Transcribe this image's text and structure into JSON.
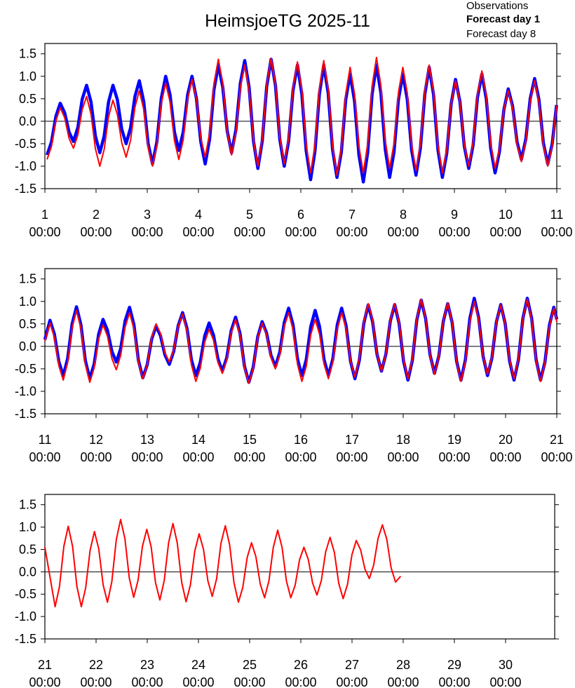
{
  "title": "HeimsjoeTG 2025-11",
  "legend": [
    {
      "name": "Observations",
      "color": "#000000"
    },
    {
      "name": "Forecast day 1",
      "color": "#0000ff"
    },
    {
      "name": "Forecast day 8",
      "color": "#ff0000"
    }
  ],
  "chart_data": [
    {
      "type": "line",
      "xlim": [
        1,
        11
      ],
      "ylim": [
        -1.5,
        1.73
      ],
      "reference_line": 0,
      "xticks": [
        1,
        2,
        3,
        4,
        5,
        6,
        7,
        8,
        9,
        10,
        11
      ],
      "xtick_times": [
        "00:00",
        "00:00",
        "00:00",
        "00:00",
        "00:00",
        "00:00",
        "00:00",
        "00:00",
        "00:00",
        "00:00",
        "00:00"
      ],
      "yticks": [
        1.5,
        {
          "value": 1,
          "label": "1.0"
        },
        0.5,
        {
          "value": 0,
          "label": "0.0"
        },
        -0.5,
        {
          "value": -1,
          "label": "-1.0"
        },
        -1.5
      ],
      "x": [
        1.043,
        1.129,
        1.215,
        1.3,
        1.386,
        1.472,
        1.558,
        1.644,
        1.729,
        1.815,
        1.901,
        1.987,
        2.073,
        2.158,
        2.244,
        2.33,
        2.416,
        2.502,
        2.587,
        2.673,
        2.759,
        2.845,
        2.931,
        3.016,
        3.102,
        3.188,
        3.274,
        3.36,
        3.445,
        3.531,
        3.617,
        3.703,
        3.789,
        3.874,
        3.96,
        4.046,
        4.132,
        4.218,
        4.303,
        4.389,
        4.475,
        4.561,
        4.647,
        4.732,
        4.818,
        4.904,
        4.99,
        5.076,
        5.161,
        5.247,
        5.333,
        5.419,
        5.505,
        5.59,
        5.676,
        5.762,
        5.848,
        5.934,
        6.019,
        6.105,
        6.191,
        6.277,
        6.363,
        6.448,
        6.534,
        6.62,
        6.706,
        6.792,
        6.877,
        6.963,
        7.049,
        7.135,
        7.221,
        7.306,
        7.392,
        7.478,
        7.564,
        7.65,
        7.735,
        7.821,
        7.907,
        7.993,
        8.079,
        8.164,
        8.25,
        8.336,
        8.422,
        8.508,
        8.593,
        8.679,
        8.765,
        8.851,
        8.937,
        9.022,
        9.108,
        9.194,
        9.28,
        9.366,
        9.451,
        9.537,
        9.623,
        9.709,
        9.795,
        9.88,
        9.966,
        10.052,
        10.138,
        10.224,
        10.309,
        10.395,
        10.481,
        10.567,
        10.652,
        10.738,
        10.824,
        10.91,
        10.996
      ],
      "series": [
        {
          "name": "Forecast day 1",
          "color": "#0000ff",
          "values": [
            -0.75,
            -0.46,
            0.11,
            0.4,
            0.19,
            -0.24,
            -0.45,
            -0.14,
            0.49,
            0.8,
            0.43,
            -0.33,
            -0.7,
            -0.33,
            0.43,
            0.8,
            0.48,
            -0.18,
            -0.5,
            -0.15,
            0.55,
            0.9,
            0.44,
            -0.49,
            -0.95,
            -0.46,
            0.51,
            1.0,
            0.59,
            -0.24,
            -0.65,
            -0.24,
            0.59,
            1.0,
            0.51,
            -0.46,
            -0.95,
            -0.4,
            0.7,
            1.25,
            0.76,
            -0.21,
            -0.7,
            -0.19,
            0.84,
            1.35,
            0.75,
            -0.45,
            -1.05,
            -0.44,
            0.77,
            1.38,
            0.79,
            -0.41,
            -1.0,
            -0.44,
            0.69,
            1.25,
            0.61,
            -0.66,
            -1.3,
            -0.66,
            0.61,
            1.25,
            0.63,
            -0.63,
            -1.25,
            -0.68,
            0.48,
            1.05,
            0.45,
            -0.75,
            -1.35,
            -0.7,
            0.6,
            1.25,
            0.63,
            -0.63,
            -1.25,
            -0.68,
            0.48,
            1.05,
            0.49,
            -0.64,
            -1.2,
            -0.6,
            0.6,
            1.2,
            0.59,
            -0.64,
            -1.25,
            -0.71,
            0.39,
            0.93,
            0.44,
            -0.56,
            -1.05,
            -0.53,
            0.53,
            1.05,
            0.5,
            -0.6,
            -1.15,
            -0.68,
            0.25,
            0.72,
            0.33,
            -0.46,
            -0.85,
            -0.4,
            0.5,
            0.95,
            0.48,
            -0.48,
            -0.95,
            -0.51,
            0.36
          ]
        },
        {
          "name": "Forecast day 8",
          "color": "#ff0000",
          "values": [
            -0.85,
            -0.56,
            0.01,
            0.3,
            0.08,
            -0.38,
            -0.6,
            -0.31,
            0.26,
            0.55,
            0.16,
            -0.61,
            -1.0,
            -0.63,
            0.1,
            0.47,
            0.15,
            -0.48,
            -0.8,
            -0.43,
            0.31,
            0.68,
            0.26,
            -0.58,
            -1.0,
            -0.54,
            0.39,
            0.85,
            0.43,
            -0.43,
            -0.85,
            -0.41,
            0.49,
            0.93,
            0.5,
            -0.37,
            -0.8,
            -0.26,
            0.84,
            1.38,
            0.85,
            -0.22,
            -0.75,
            -0.25,
            0.75,
            1.25,
            0.69,
            -0.44,
            -1.0,
            -0.4,
            0.8,
            1.4,
            0.81,
            -0.36,
            -0.95,
            -0.38,
            0.75,
            1.32,
            0.7,
            -0.53,
            -1.15,
            -0.53,
            0.73,
            1.35,
            0.71,
            -0.56,
            -1.2,
            -0.6,
            0.6,
            1.2,
            0.61,
            -0.56,
            -1.15,
            -0.51,
            0.78,
            1.42,
            0.8,
            -0.43,
            -1.05,
            -0.49,
            0.64,
            1.2,
            0.63,
            -0.53,
            -1.1,
            -0.51,
            0.66,
            1.25,
            0.65,
            -0.55,
            -1.15,
            -0.64,
            0.39,
            0.9,
            0.43,
            -0.53,
            -1.0,
            -0.47,
            0.59,
            1.12,
            0.58,
            -0.51,
            -1.05,
            -0.62,
            0.25,
            0.68,
            0.29,
            -0.51,
            -0.9,
            -0.45,
            0.45,
            0.9,
            0.43,
            -0.53,
            -1.0,
            -0.55,
            0.35
          ]
        }
      ]
    },
    {
      "type": "line",
      "xlim": [
        11,
        21
      ],
      "ylim": [
        -1.5,
        1.73
      ],
      "reference_line": 0,
      "xticks": [
        11,
        12,
        13,
        14,
        15,
        16,
        17,
        18,
        19,
        20,
        21
      ],
      "xtick_times": [
        "00:00",
        "00:00",
        "00:00",
        "00:00",
        "00:00",
        "00:00",
        "00:00",
        "00:00",
        "00:00",
        "00:00",
        "00:00"
      ],
      "yticks": [
        1.5,
        {
          "value": 1,
          "label": "1.0"
        },
        0.5,
        {
          "value": 0,
          "label": "0.0"
        },
        -0.5,
        {
          "value": -1,
          "label": "-1.0"
        },
        -1.5
      ],
      "x": [
        11.0,
        11.1,
        11.186,
        11.273,
        11.359,
        11.445,
        11.532,
        11.618,
        11.704,
        11.791,
        11.877,
        11.963,
        12.05,
        12.136,
        12.222,
        12.309,
        12.395,
        12.481,
        12.568,
        12.654,
        12.74,
        12.827,
        12.913,
        12.999,
        13.086,
        13.172,
        13.258,
        13.345,
        13.431,
        13.517,
        13.604,
        13.69,
        13.776,
        13.863,
        13.949,
        14.035,
        14.122,
        14.208,
        14.294,
        14.381,
        14.467,
        14.553,
        14.64,
        14.726,
        14.812,
        14.899,
        14.985,
        15.071,
        15.158,
        15.244,
        15.33,
        15.417,
        15.503,
        15.589,
        15.676,
        15.762,
        15.848,
        15.935,
        16.021,
        16.107,
        16.194,
        16.28,
        16.366,
        16.453,
        16.539,
        16.625,
        16.712,
        16.798,
        16.884,
        16.971,
        17.057,
        17.143,
        17.23,
        17.316,
        17.402,
        17.489,
        17.575,
        17.661,
        17.748,
        17.834,
        17.92,
        18.007,
        18.093,
        18.179,
        18.266,
        18.352,
        18.438,
        18.525,
        18.611,
        18.697,
        18.784,
        18.87,
        18.956,
        19.043,
        19.129,
        19.215,
        19.302,
        19.388,
        19.474,
        19.561,
        19.647,
        19.733,
        19.82,
        19.906,
        19.992,
        20.079,
        20.165,
        20.251,
        20.338,
        20.424,
        20.51,
        20.597,
        20.683,
        20.769,
        20.856,
        20.942,
        21.0
      ],
      "series": [
        {
          "name": "Forecast day 1",
          "color": "#0000ff",
          "values": [
            0.15,
            0.58,
            0.27,
            -0.34,
            -0.65,
            -0.27,
            0.5,
            0.88,
            0.48,
            -0.32,
            -0.72,
            -0.39,
            0.27,
            0.6,
            0.36,
            -0.11,
            -0.35,
            -0.05,
            0.57,
            0.87,
            0.48,
            -0.31,
            -0.7,
            -0.41,
            0.16,
            0.45,
            0.24,
            -0.19,
            -0.4,
            -0.11,
            0.46,
            0.75,
            0.4,
            -0.3,
            -0.65,
            -0.36,
            0.23,
            0.52,
            0.25,
            -0.28,
            -0.55,
            -0.25,
            0.35,
            0.65,
            0.29,
            -0.44,
            -0.8,
            -0.46,
            0.21,
            0.55,
            0.3,
            -0.2,
            -0.45,
            -0.13,
            0.53,
            0.85,
            0.48,
            -0.28,
            -0.65,
            -0.29,
            0.44,
            0.8,
            0.44,
            -0.29,
            -0.65,
            -0.28,
            0.48,
            0.85,
            0.46,
            -0.33,
            -0.72,
            -0.31,
            0.51,
            0.92,
            0.55,
            -0.18,
            -0.55,
            -0.18,
            0.56,
            0.93,
            0.51,
            -0.33,
            -0.75,
            -0.31,
            0.59,
            1.03,
            0.62,
            -0.19,
            -0.6,
            -0.21,
            0.56,
            0.95,
            0.53,
            -0.33,
            -0.75,
            -0.3,
            0.62,
            1.07,
            0.64,
            -0.22,
            -0.65,
            -0.26,
            0.54,
            0.93,
            0.51,
            -0.33,
            -0.75,
            -0.3,
            0.62,
            1.07,
            0.62,
            -0.3,
            -0.75,
            -0.35,
            0.47,
            0.87,
            0.6
          ]
        },
        {
          "name": "Forecast day 8",
          "color": "#ff0000",
          "values": [
            0.12,
            0.52,
            0.2,
            -0.43,
            -0.75,
            -0.36,
            0.41,
            0.8,
            0.4,
            -0.4,
            -0.8,
            -0.48,
            0.16,
            0.48,
            0.23,
            -0.27,
            -0.52,
            -0.2,
            0.43,
            0.75,
            0.38,
            -0.35,
            -0.72,
            -0.42,
            0.2,
            0.5,
            0.29,
            -0.14,
            -0.35,
            -0.08,
            0.45,
            0.72,
            0.35,
            -0.41,
            -0.78,
            -0.49,
            0.09,
            0.38,
            0.14,
            -0.36,
            -0.6,
            -0.3,
            0.3,
            0.6,
            0.25,
            -0.47,
            -0.82,
            -0.49,
            0.19,
            0.52,
            0.27,
            -0.25,
            -0.5,
            -0.19,
            0.44,
            0.75,
            0.37,
            -0.4,
            -0.78,
            -0.44,
            0.26,
            0.6,
            0.27,
            -0.39,
            -0.72,
            -0.35,
            0.38,
            0.75,
            0.39,
            -0.32,
            -0.68,
            -0.27,
            0.54,
            0.95,
            0.58,
            -0.18,
            -0.55,
            -0.18,
            0.58,
            0.95,
            0.53,
            -0.3,
            -0.72,
            -0.28,
            0.61,
            1.05,
            0.63,
            -0.2,
            -0.62,
            -0.22,
            0.57,
            0.97,
            0.53,
            -0.34,
            -0.78,
            -0.34,
            0.56,
            1.0,
            0.6,
            -0.22,
            -0.62,
            -0.24,
            0.54,
            0.92,
            0.51,
            -0.31,
            -0.72,
            -0.28,
            0.61,
            1.05,
            0.59,
            -0.32,
            -0.78,
            -0.37,
            0.44,
            0.85,
            0.55
          ]
        }
      ]
    },
    {
      "type": "line",
      "xlim": [
        21,
        30.96
      ],
      "ylim": [
        -1.5,
        1.73
      ],
      "reference_line": 0,
      "xticks": [
        21,
        22,
        23,
        24,
        25,
        26,
        27,
        28,
        29,
        30
      ],
      "xtick_times": [
        "00:00",
        "00:00",
        "00:00",
        "00:00",
        "00:00",
        "00:00",
        "00:00",
        "00:00",
        "00:00",
        "00:00"
      ],
      "yticks": [
        1.5,
        {
          "value": 1,
          "label": "1.0"
        },
        0.5,
        {
          "value": 0,
          "label": "0.0"
        },
        -0.5,
        {
          "value": -1,
          "label": "-1.0"
        },
        -1.5
      ],
      "x": [
        21.0,
        21.2,
        21.285,
        21.371,
        21.456,
        21.541,
        21.626,
        21.712,
        21.797,
        21.883,
        21.968,
        22.053,
        22.138,
        22.223,
        22.308,
        22.394,
        22.479,
        22.564,
        22.649,
        22.735,
        22.82,
        22.906,
        22.991,
        23.076,
        23.161,
        23.246,
        23.331,
        23.417,
        23.502,
        23.587,
        23.672,
        23.758,
        23.843,
        23.929,
        24.014,
        24.099,
        24.184,
        24.269,
        24.354,
        24.44,
        24.525,
        24.61,
        24.695,
        24.781,
        24.866,
        24.952,
        25.037,
        25.122,
        25.207,
        25.292,
        25.377,
        25.463,
        25.548,
        25.633,
        25.718,
        25.804,
        25.889,
        25.975,
        26.06,
        26.145,
        26.23,
        26.315,
        26.4,
        26.486,
        26.571,
        26.656,
        26.741,
        26.827,
        26.912,
        26.998,
        27.083,
        27.168,
        27.253,
        27.338,
        27.423,
        27.509,
        27.594,
        27.679,
        27.764,
        27.85,
        27.95
      ],
      "series": [
        {
          "name": "Forecast day 8",
          "color": "#ff0000",
          "values": [
            0.55,
            -0.78,
            -0.33,
            0.57,
            1.02,
            0.57,
            -0.33,
            -0.78,
            -0.36,
            0.48,
            0.9,
            0.51,
            -0.29,
            -0.68,
            -0.22,
            0.71,
            1.17,
            0.74,
            -0.14,
            -0.57,
            -0.19,
            0.57,
            0.95,
            0.56,
            -0.24,
            -0.63,
            -0.2,
            0.65,
            1.08,
            0.64,
            -0.23,
            -0.67,
            -0.29,
            0.47,
            0.85,
            0.5,
            -0.2,
            -0.55,
            -0.16,
            0.64,
            1.03,
            0.6,
            -0.25,
            -0.68,
            -0.35,
            0.32,
            0.65,
            0.34,
            -0.27,
            -0.58,
            -0.2,
            0.55,
            0.93,
            0.55,
            -0.2,
            -0.58,
            -0.3,
            0.27,
            0.55,
            0.28,
            -0.25,
            -0.52,
            -0.2,
            0.45,
            0.77,
            0.43,
            -0.26,
            -0.6,
            -0.28,
            0.38,
            0.7,
            0.49,
            0.06,
            -0.15,
            0.15,
            0.75,
            1.05,
            0.73,
            0.09,
            -0.23,
            -0.1
          ]
        }
      ]
    }
  ]
}
